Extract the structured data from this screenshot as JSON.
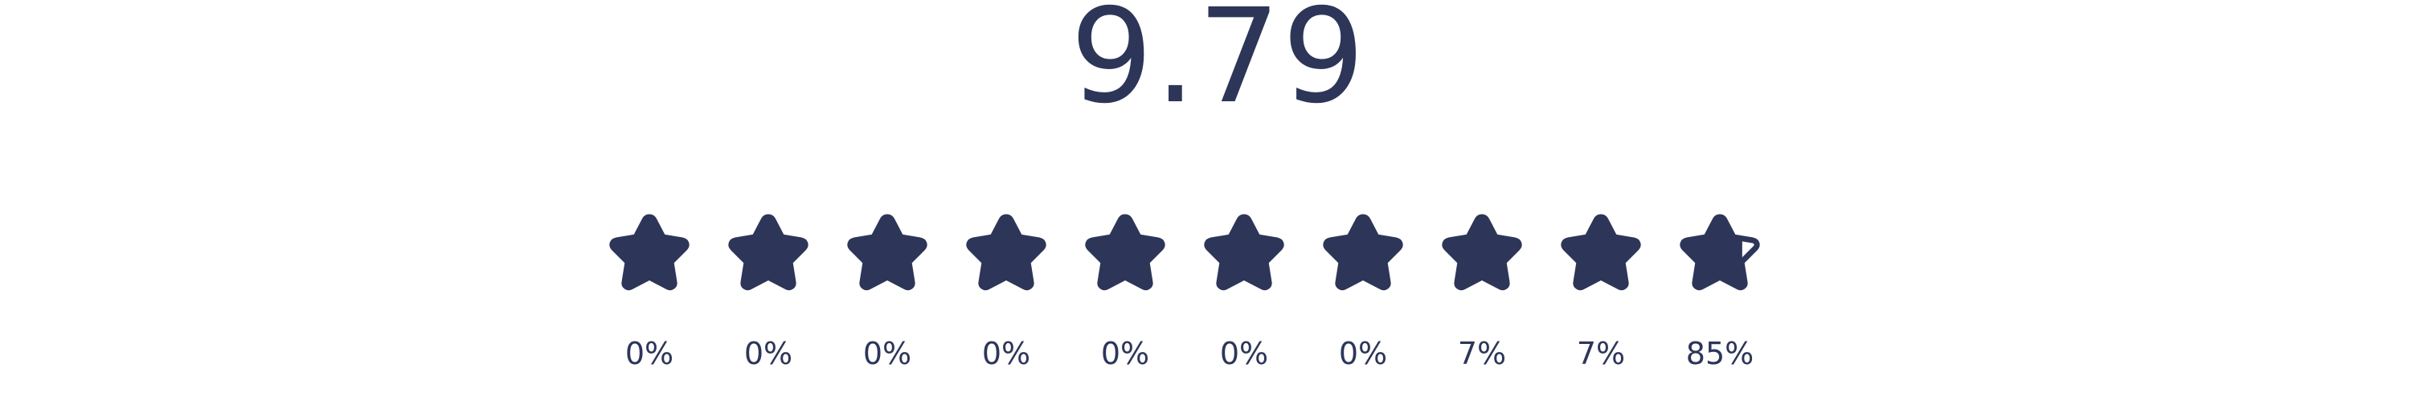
{
  "rating": {
    "score": "9.79",
    "max_stars": 10,
    "star_color": "#2d3659",
    "stars": [
      {
        "fill": 1,
        "percent": "0%"
      },
      {
        "fill": 1,
        "percent": "0%"
      },
      {
        "fill": 1,
        "percent": "0%"
      },
      {
        "fill": 1,
        "percent": "0%"
      },
      {
        "fill": 1,
        "percent": "0%"
      },
      {
        "fill": 1,
        "percent": "0%"
      },
      {
        "fill": 1,
        "percent": "0%"
      },
      {
        "fill": 1,
        "percent": "7%"
      },
      {
        "fill": 1,
        "percent": "7%"
      },
      {
        "fill": 0.79,
        "percent": "85%"
      }
    ]
  }
}
